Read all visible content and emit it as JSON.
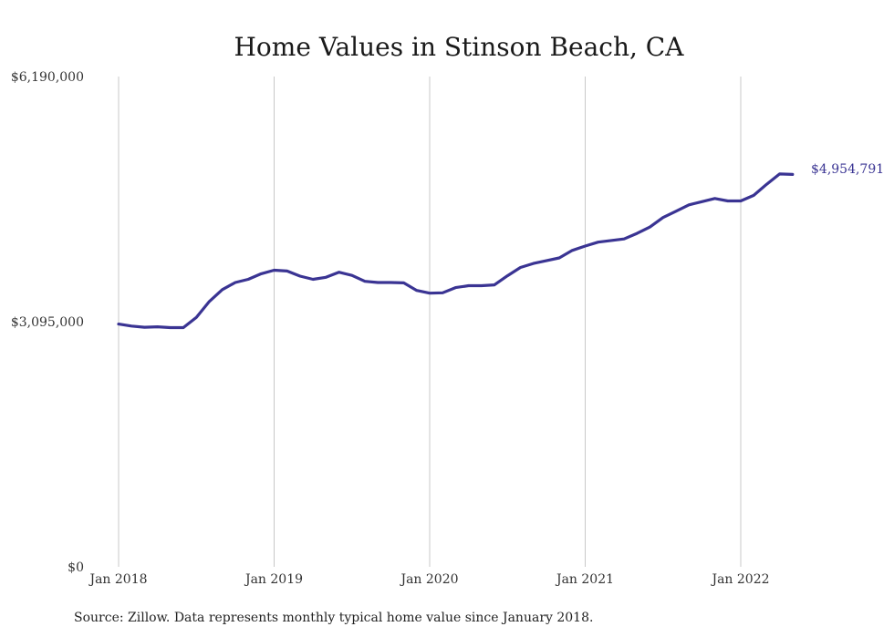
{
  "chart_data": {
    "type": "line",
    "title": "Home Values in Stinson Beach, CA",
    "xlabel": "",
    "ylabel": "",
    "x_ticks": [
      "Jan 2018",
      "Jan 2019",
      "Jan 2020",
      "Jan 2021",
      "Jan 2022"
    ],
    "y_ticks": [
      {
        "value": 0,
        "label": "$0"
      },
      {
        "value": 3095000,
        "label": "$3,095,000"
      },
      {
        "value": 6190000,
        "label": "$6,190,000"
      }
    ],
    "ylim": [
      0,
      6190000
    ],
    "xlim": [
      "2018-01",
      "2022-05"
    ],
    "grid": {
      "vertical": true,
      "horizontal": false
    },
    "legend": "none",
    "end_label": "$4,954,791",
    "series": [
      {
        "color": "#3a3493",
        "x": [
          "2018-01",
          "2018-02",
          "2018-03",
          "2018-04",
          "2018-05",
          "2018-06",
          "2018-07",
          "2018-08",
          "2018-09",
          "2018-10",
          "2018-11",
          "2018-12",
          "2019-01",
          "2019-02",
          "2019-03",
          "2019-04",
          "2019-05",
          "2019-06",
          "2019-07",
          "2019-08",
          "2019-09",
          "2019-10",
          "2019-11",
          "2019-12",
          "2020-01",
          "2020-02",
          "2020-03",
          "2020-04",
          "2020-05",
          "2020-06",
          "2020-07",
          "2020-08",
          "2020-09",
          "2020-10",
          "2020-11",
          "2020-12",
          "2021-01",
          "2021-02",
          "2021-03",
          "2021-04",
          "2021-05",
          "2021-06",
          "2021-07",
          "2021-08",
          "2021-09",
          "2021-10",
          "2021-11",
          "2021-12",
          "2022-01",
          "2022-02",
          "2022-03",
          "2022-04",
          "2022-05"
        ],
        "values": [
          3065000,
          3040000,
          3025000,
          3030000,
          3020000,
          3020000,
          3150000,
          3350000,
          3500000,
          3590000,
          3630000,
          3700000,
          3745000,
          3735000,
          3670000,
          3630000,
          3655000,
          3720000,
          3680000,
          3605000,
          3590000,
          3590000,
          3585000,
          3490000,
          3455000,
          3460000,
          3525000,
          3550000,
          3550000,
          3560000,
          3675000,
          3780000,
          3830000,
          3865000,
          3900000,
          3995000,
          4050000,
          4100000,
          4120000,
          4140000,
          4210000,
          4290000,
          4410000,
          4490000,
          4570000,
          4610000,
          4650000,
          4620000,
          4620000,
          4690000,
          4830000,
          4960000,
          4954791
        ]
      }
    ]
  },
  "source_note": "Source: Zillow. Data represents monthly typical home value since January 2018."
}
